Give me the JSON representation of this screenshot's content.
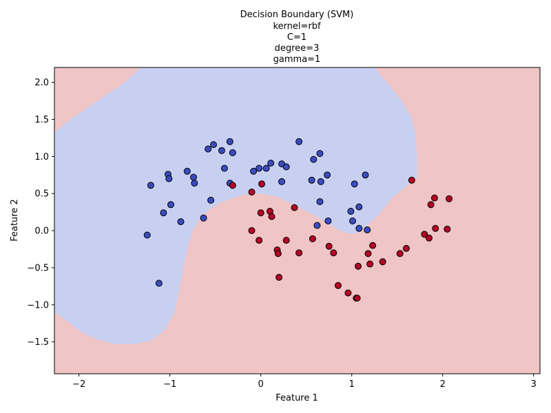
{
  "chart_data": {
    "type": "scatter",
    "title_lines": [
      "Decision Boundary (SVM)",
      "kernel=rbf",
      "C=1",
      "degree=3",
      "gamma=1"
    ],
    "xlabel": "Feature 1",
    "ylabel": "Feature 2",
    "xlim": [
      -2.27,
      3.07
    ],
    "ylim": [
      -1.93,
      2.2
    ],
    "xticks": [
      -2,
      -1,
      0,
      1,
      2,
      3
    ],
    "yticks": [
      -1.5,
      -1.0,
      -0.5,
      0.0,
      0.5,
      1.0,
      1.5,
      2.0
    ],
    "ytick_labels": [
      "−1.5",
      "−1.0",
      "−0.5",
      "0.0",
      "0.5",
      "1.0",
      "1.5",
      "2.0"
    ],
    "xtick_labels": [
      "−2",
      "−1",
      "0",
      "1",
      "2",
      "3"
    ],
    "grid": false,
    "colors": {
      "class0_point": "#3b4cc0",
      "class1_point": "#b40426",
      "class0_region": "#c8d0f2",
      "class1_region": "#efc5c5",
      "point_edge": "#000000"
    },
    "class0_region_boundary": [
      [
        -2.27,
        1.32
      ],
      [
        -2.15,
        1.45
      ],
      [
        -2.0,
        1.58
      ],
      [
        -1.85,
        1.7
      ],
      [
        -1.7,
        1.83
      ],
      [
        -1.55,
        1.95
      ],
      [
        -1.45,
        2.05
      ],
      [
        -1.32,
        2.2
      ],
      [
        1.26,
        2.2
      ],
      [
        1.3,
        2.12
      ],
      [
        1.42,
        1.95
      ],
      [
        1.55,
        1.75
      ],
      [
        1.65,
        1.55
      ],
      [
        1.7,
        1.3
      ],
      [
        1.72,
        1.0
      ],
      [
        1.72,
        0.72
      ],
      [
        1.6,
        0.6
      ],
      [
        1.45,
        0.45
      ],
      [
        1.3,
        0.22
      ],
      [
        1.15,
        0.05
      ],
      [
        1.05,
        -0.04
      ],
      [
        0.95,
        -0.04
      ],
      [
        0.8,
        0.05
      ],
      [
        0.6,
        0.2
      ],
      [
        0.4,
        0.33
      ],
      [
        0.2,
        0.45
      ],
      [
        0.0,
        0.5
      ],
      [
        -0.2,
        0.48
      ],
      [
        -0.4,
        0.4
      ],
      [
        -0.55,
        0.3
      ],
      [
        -0.65,
        0.2
      ],
      [
        -0.75,
        0.0
      ],
      [
        -0.8,
        -0.2
      ],
      [
        -0.85,
        -0.5
      ],
      [
        -0.9,
        -0.8
      ],
      [
        -0.95,
        -1.1
      ],
      [
        -1.05,
        -1.33
      ],
      [
        -1.2,
        -1.48
      ],
      [
        -1.4,
        -1.53
      ],
      [
        -1.6,
        -1.53
      ],
      [
        -1.8,
        -1.47
      ],
      [
        -2.0,
        -1.35
      ],
      [
        -2.15,
        -1.2
      ],
      [
        -2.27,
        -1.1
      ]
    ],
    "series": [
      {
        "class": 0,
        "points": [
          [
            -1.25,
            -0.06
          ],
          [
            -1.21,
            0.61
          ],
          [
            -1.12,
            -0.71
          ],
          [
            -1.07,
            0.24
          ],
          [
            -1.02,
            0.76
          ],
          [
            -1.01,
            0.7
          ],
          [
            -0.99,
            0.35
          ],
          [
            -0.88,
            0.12
          ],
          [
            -0.81,
            0.8
          ],
          [
            -0.74,
            0.72
          ],
          [
            -0.73,
            0.64
          ],
          [
            -0.63,
            0.17
          ],
          [
            -0.58,
            1.1
          ],
          [
            -0.55,
            0.41
          ],
          [
            -0.52,
            1.16
          ],
          [
            -0.43,
            1.08
          ],
          [
            -0.4,
            0.84
          ],
          [
            -0.34,
            1.2
          ],
          [
            -0.34,
            0.64
          ],
          [
            -0.31,
            1.05
          ],
          [
            -0.08,
            0.8
          ],
          [
            -0.02,
            0.84
          ],
          [
            0.06,
            0.84
          ],
          [
            0.11,
            0.91
          ],
          [
            0.23,
            0.9
          ],
          [
            0.23,
            0.66
          ],
          [
            0.28,
            0.86
          ],
          [
            0.42,
            1.2
          ],
          [
            0.56,
            0.68
          ],
          [
            0.58,
            0.96
          ],
          [
            0.62,
            0.07
          ],
          [
            0.65,
            1.04
          ],
          [
            0.65,
            0.39
          ],
          [
            0.66,
            0.66
          ],
          [
            0.73,
            0.75
          ],
          [
            0.74,
            0.13
          ],
          [
            0.99,
            0.26
          ],
          [
            1.01,
            0.13
          ],
          [
            1.03,
            0.63
          ],
          [
            1.08,
            0.03
          ],
          [
            1.08,
            0.32
          ],
          [
            1.15,
            0.75
          ],
          [
            1.17,
            0.01
          ]
        ]
      },
      {
        "class": 1,
        "points": [
          [
            -0.31,
            0.61
          ],
          [
            -0.1,
            0.0
          ],
          [
            -0.1,
            0.52
          ],
          [
            -0.02,
            -0.13
          ],
          [
            0.0,
            0.24
          ],
          [
            0.01,
            0.63
          ],
          [
            0.1,
            0.26
          ],
          [
            0.12,
            0.19
          ],
          [
            0.18,
            -0.26
          ],
          [
            0.19,
            -0.31
          ],
          [
            0.2,
            -0.63
          ],
          [
            0.28,
            -0.13
          ],
          [
            0.37,
            0.31
          ],
          [
            0.42,
            -0.3
          ],
          [
            0.57,
            -0.11
          ],
          [
            0.75,
            -0.21
          ],
          [
            0.8,
            -0.3
          ],
          [
            0.85,
            -0.74
          ],
          [
            0.96,
            -0.84
          ],
          [
            1.05,
            -0.91
          ],
          [
            1.06,
            -0.91
          ],
          [
            1.07,
            -0.48
          ],
          [
            1.18,
            -0.31
          ],
          [
            1.2,
            -0.45
          ],
          [
            1.23,
            -0.2
          ],
          [
            1.34,
            -0.42
          ],
          [
            1.53,
            -0.31
          ],
          [
            1.6,
            -0.24
          ],
          [
            1.66,
            0.68
          ],
          [
            1.8,
            -0.05
          ],
          [
            1.85,
            -0.1
          ],
          [
            1.87,
            0.35
          ],
          [
            1.91,
            0.44
          ],
          [
            1.92,
            0.03
          ],
          [
            2.05,
            0.02
          ],
          [
            2.07,
            0.43
          ]
        ]
      }
    ]
  }
}
